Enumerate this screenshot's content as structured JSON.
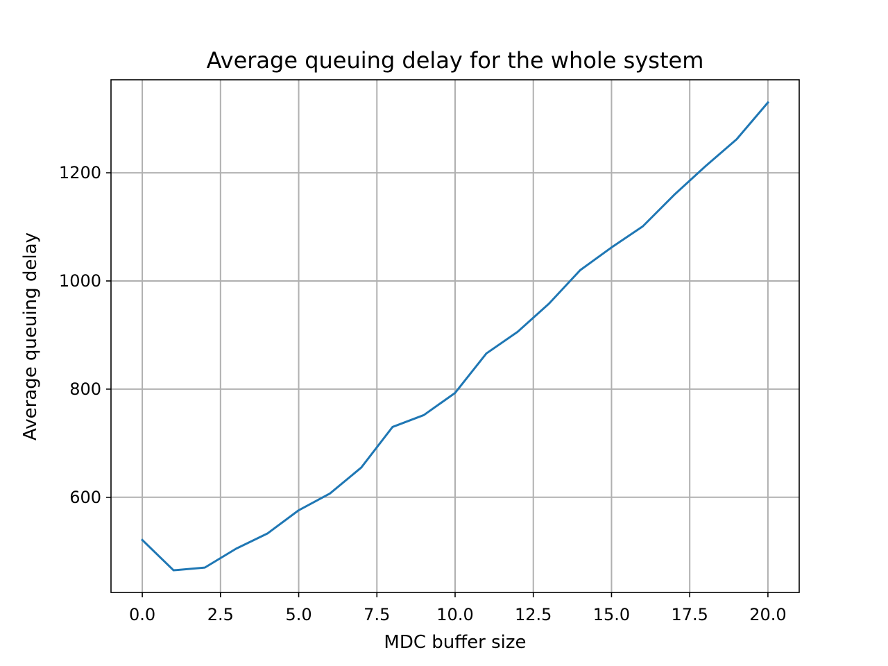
{
  "chart_data": {
    "type": "line",
    "title": "Average queuing delay for the whole system",
    "xlabel": "MDC buffer size",
    "ylabel": "Average queuing delay",
    "xlim": [
      -1.0,
      21.0
    ],
    "ylim": [
      424,
      1372
    ],
    "xticks": [
      0.0,
      2.5,
      5.0,
      7.5,
      10.0,
      12.5,
      15.0,
      17.5,
      20.0
    ],
    "xtick_labels": [
      "0.0",
      "2.5",
      "5.0",
      "7.5",
      "10.0",
      "12.5",
      "15.0",
      "17.5",
      "20.0"
    ],
    "yticks": [
      600,
      800,
      1000,
      1200
    ],
    "ytick_labels": [
      "600",
      "800",
      "1000",
      "1200"
    ],
    "grid": true,
    "series": [
      {
        "color": "#1f77b4",
        "x": [
          0,
          1,
          2,
          3,
          4,
          5,
          6,
          7,
          8,
          9,
          10,
          11,
          12,
          13,
          14,
          15,
          16,
          17,
          18,
          19,
          20
        ],
        "y": [
          521,
          465,
          470,
          505,
          533,
          576,
          607,
          655,
          730,
          752,
          793,
          866,
          906,
          958,
          1020,
          1062,
          1101,
          1159,
          1212,
          1262,
          1330
        ]
      }
    ]
  }
}
